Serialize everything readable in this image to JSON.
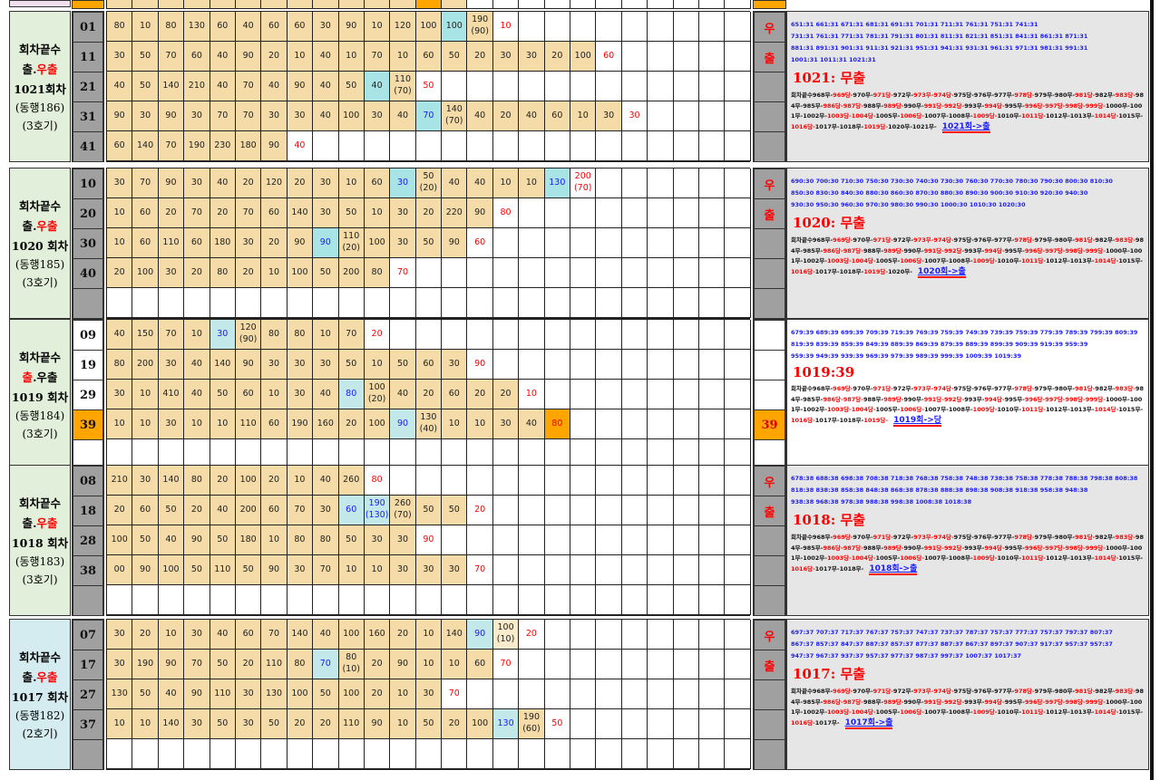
{
  "colors": {
    "tan": "#f5dba8",
    "cyan": "#a8e4e6",
    "orange": "#ffa500",
    "gray": "#a0a0a0",
    "label_green": "#e2efda",
    "label_blue": "#d4ebf0",
    "red": "#ff0000",
    "blue": "#1a1aff"
  },
  "history_sequence": {
    "prefix": "회차끝수",
    "items": [
      "968무",
      "969당",
      "970무",
      "971당",
      "972무",
      "973무",
      "974당",
      "975당",
      "976무",
      "977무",
      "978당",
      "979무",
      "980무",
      "981당",
      "982무",
      "983당",
      "984무",
      "985무",
      "986당",
      "987당",
      "988무",
      "989당",
      "990무",
      "991당",
      "992당",
      "993무",
      "994당",
      "995무",
      "996당",
      "997당",
      "998당",
      "999당",
      "1000무",
      "1001무",
      "1002무",
      "1003당",
      "1004당",
      "1005무",
      "1006당",
      "1007무",
      "1008무",
      "1009당",
      "1010무",
      "1011당",
      "1012무",
      "1013무",
      "1014당",
      "1015무",
      "1016당",
      "1017무",
      "1018무",
      "1019당",
      "1020무",
      "1021무"
    ],
    "red_items": [
      "969당",
      "971당",
      "973무",
      "974당",
      "978당",
      "981당",
      "983당",
      "986당",
      "987당",
      "989당",
      "991당",
      "992당",
      "994당",
      "996당",
      "997당",
      "998당",
      "999당",
      "1003당",
      "1004당",
      "1006당",
      "1009당",
      "1011당",
      "1014당",
      "1016당",
      "1019당"
    ]
  },
  "blocks": [
    {
      "label": {
        "line1": "회차끝수",
        "line2_a": "출",
        "line2_sep": ".",
        "line2_b": "우출",
        "red_part": "b",
        "round": "1021회차",
        "companion": "(동행186)",
        "machine": "(3호기)"
      },
      "label_bg": "green",
      "marker": [
        "우",
        "출",
        "",
        "",
        ""
      ],
      "marker_style": "gray",
      "panel_style": "gray",
      "blue_lines": [
        "651:31 661:31 671:31 681:31 691:31 701:31 711:31 761:31 751:31 741:31",
        "731:31 761:31 771:31 781:31 791:31 801:31 811:31 821:31 851:31 841:31 861:31 871:31",
        "881:31 891:31 901:31 911:31 921:31 951:31 941:31 931:31 961:31 971:31 981:31 991:31",
        "1001:31 1011:31 1021:31"
      ],
      "heading": "1021: 무출",
      "link": "1021회->출",
      "rows": [
        {
          "no": "01",
          "cells": [
            "80",
            "10",
            "80",
            "130",
            "60",
            "40",
            "60",
            "60",
            "30",
            "90",
            "10",
            "120",
            "100",
            {
              "v": "100",
              "bg": "cyan"
            },
            {
              "v": "190",
              "sub": "(90)"
            },
            {
              "v": "10",
              "bg": "white",
              "fg": "red"
            }
          ]
        },
        {
          "no": "11",
          "cells": [
            "30",
            "50",
            "70",
            "60",
            "40",
            "90",
            "20",
            "10",
            "40",
            "10",
            "70",
            "10",
            "60",
            "50",
            "20",
            "30",
            "30",
            "20",
            "100",
            {
              "v": "60",
              "bg": "white",
              "fg": "red"
            }
          ]
        },
        {
          "no": "21",
          "cells": [
            "40",
            "50",
            "140",
            "210",
            "40",
            "70",
            "40",
            "90",
            "40",
            "50",
            {
              "v": "40",
              "bg": "cyan"
            },
            {
              "v": "110",
              "sub": "(70)"
            },
            {
              "v": "50",
              "bg": "white",
              "fg": "red"
            }
          ]
        },
        {
          "no": "31",
          "cells": [
            "90",
            "30",
            "90",
            "30",
            "70",
            "70",
            "30",
            "30",
            "40",
            "100",
            "30",
            "40",
            {
              "v": "70",
              "bg": "cyan",
              "fg": "blue"
            },
            {
              "v": "140",
              "sub": "(70)"
            },
            "40",
            "20",
            "40",
            "60",
            "10",
            "30",
            {
              "v": "30",
              "bg": "white",
              "fg": "red"
            }
          ]
        },
        {
          "no": "41",
          "cells": [
            "60",
            "140",
            "70",
            "190",
            "230",
            "180",
            "90",
            {
              "v": "40",
              "bg": "white",
              "fg": "red"
            }
          ]
        }
      ]
    },
    {
      "label": {
        "line1": "회차끝수",
        "line2_a": "출",
        "line2_sep": ".",
        "line2_b": "우출",
        "red_part": "b",
        "round": "1020 회차",
        "companion": "(동행185)",
        "machine": "(3호기)"
      },
      "label_bg": "green",
      "marker": [
        "우",
        "출",
        "",
        "",
        ""
      ],
      "marker_style": "gray",
      "panel_style": "gray",
      "blue_lines": [
        "690:30 700:30 710:30 750:30 730:30 740:30 730:30 760:30 770:30 780:30 790:30 800:30 810:30",
        "850:30 830:30 840:30 880:30 860:30 870:30 880:30 890:30 900:30 910:30 920:30 940:30",
        "930:30 950:30 960:30 970:30 980:30 990:30 1000:30 1010:30 1020:30"
      ],
      "heading": "1020: 무출",
      "link": "1020회->출",
      "rows": [
        {
          "no": "10",
          "cells": [
            "30",
            "70",
            "90",
            "30",
            "40",
            "20",
            "120",
            "20",
            "30",
            "10",
            "60",
            {
              "v": "30",
              "bg": "cyan",
              "fg": "blue"
            },
            {
              "v": "50",
              "sub": "(20)"
            },
            "40",
            "40",
            "10",
            "10",
            {
              "v": "130",
              "bg": "cyan",
              "fg": "blue"
            },
            {
              "v": "200",
              "sub": "(70)",
              "bg": "white",
              "fg": "red"
            }
          ]
        },
        {
          "no": "20",
          "cells": [
            "10",
            "60",
            "20",
            "70",
            "20",
            "70",
            "60",
            "140",
            "30",
            "50",
            "10",
            "30",
            "20",
            "220",
            "90",
            {
              "v": "80",
              "bg": "white",
              "fg": "red"
            }
          ]
        },
        {
          "no": "30",
          "cells": [
            "10",
            "60",
            "110",
            "60",
            "180",
            "30",
            "20",
            "90",
            {
              "v": "90",
              "bg": "cyan",
              "fg": "blue"
            },
            {
              "v": "110",
              "sub": "(20)"
            },
            "100",
            "30",
            "50",
            "90",
            {
              "v": "60",
              "bg": "white",
              "fg": "red"
            }
          ]
        },
        {
          "no": "40",
          "cells": [
            "20",
            "100",
            "30",
            "20",
            "80",
            "20",
            "10",
            "100",
            "50",
            "200",
            "80",
            {
              "v": "70",
              "bg": "white",
              "fg": "red"
            }
          ]
        },
        {
          "no": "",
          "cells": []
        }
      ]
    },
    {
      "label": {
        "line1": "회차끝수",
        "line2_a": "출",
        "line2_sep": ".",
        "line2_b": "우출",
        "red_part": "a",
        "round": "1019 회차",
        "companion": "(동행184)",
        "machine": "(3호기)"
      },
      "label_bg": "green",
      "num_style": "white",
      "marker": [
        "",
        "",
        "",
        "39",
        ""
      ],
      "marker_style": "white",
      "panel_style": "white",
      "blue_lines": [
        "679:39 689:39 699:39 709:39 719:39 769:39 759:39 749:39 739:39 759:39 779:39 789:39 799:39 809:39",
        "819:39 839:39 859:39 849:39 889:39 869:39 879:39 889:39 899:39 909:39 919:39 959:39",
        "959:39 949:39 939:39 969:39 979:39 989:39 999:39 1009:39 1019:39"
      ],
      "heading": "1019:39",
      "link": "1019회->당",
      "rows": [
        {
          "no": "09",
          "cells": [
            "40",
            "150",
            "70",
            "10",
            {
              "v": "30",
              "bg": "lcyan",
              "fg": "blue"
            },
            {
              "v": "120",
              "sub": "(90)"
            },
            "80",
            "80",
            "10",
            "70",
            {
              "v": "20",
              "bg": "white",
              "fg": "red"
            }
          ]
        },
        {
          "no": "19",
          "cells": [
            "80",
            "200",
            "30",
            "40",
            "140",
            "90",
            "30",
            "30",
            "30",
            "50",
            "10",
            "50",
            "60",
            "30",
            {
              "v": "90",
              "bg": "white",
              "fg": "red"
            }
          ]
        },
        {
          "no": "29",
          "cells": [
            "30",
            "10",
            "410",
            "40",
            "50",
            "60",
            "10",
            "30",
            "40",
            {
              "v": "80",
              "bg": "lcyan",
              "fg": "blue"
            },
            {
              "v": "100",
              "sub": "(20)"
            },
            "40",
            "20",
            "60",
            "20",
            "20",
            {
              "v": "10",
              "bg": "white",
              "fg": "red"
            }
          ]
        },
        {
          "no": "39",
          "no_style": "orange",
          "cells": [
            "10",
            "10",
            "30",
            "10",
            "10",
            "110",
            "60",
            "190",
            "160",
            "20",
            "100",
            {
              "v": "90",
              "bg": "lcyan",
              "fg": "blue"
            },
            {
              "v": "130",
              "sub": "(40)"
            },
            "10",
            "10",
            "30",
            "40",
            {
              "v": "80",
              "bg": "orange",
              "fg": "red"
            }
          ]
        },
        {
          "no": "",
          "cells": []
        }
      ]
    },
    {
      "label": {
        "line1": "회차끝수",
        "line2_a": "출",
        "line2_sep": ".",
        "line2_b": "우출",
        "red_part": "b",
        "round": "1018 회차",
        "companion": "(동행183)",
        "machine": "(3호기)"
      },
      "label_bg": "green",
      "marker": [
        "우",
        "출",
        "",
        "",
        ""
      ],
      "marker_style": "gray",
      "panel_style": "gray",
      "blue_lines": [
        "678:38 688:38 698:38 708:38 718:38 768:38 758:38 748:38 738:38 758:38 778:38 788:38 798:38 808:38",
        "818:38 838:38 858:38 848:38 868:38 878:38 888:38 898:38 908:38 918:38 958:38 948:38",
        "938:38 968:38 978:38 988:38 998:38 1008:38 1018:38"
      ],
      "heading": "1018: 무출",
      "link": "1018회->출",
      "rows": [
        {
          "no": "08",
          "cells": [
            "210",
            "30",
            "140",
            "80",
            "20",
            "100",
            "20",
            "10",
            "40",
            "260",
            {
              "v": "80",
              "bg": "white",
              "fg": "red"
            }
          ]
        },
        {
          "no": "18",
          "cells": [
            "20",
            "60",
            "50",
            "20",
            "40",
            "200",
            "60",
            "70",
            "30",
            {
              "v": "60",
              "bg": "lcyan",
              "fg": "blue"
            },
            {
              "v": "190",
              "sub": "(130)",
              "bg": "lcyan",
              "fg": "blue"
            },
            {
              "v": "260",
              "sub": "(70)"
            },
            "50",
            "50",
            {
              "v": "20",
              "bg": "white",
              "fg": "red"
            }
          ]
        },
        {
          "no": "28",
          "cells": [
            "100",
            "50",
            "40",
            "90",
            "50",
            "180",
            "10",
            "80",
            "80",
            "50",
            "30",
            "30",
            {
              "v": "90",
              "bg": "white",
              "fg": "red"
            }
          ]
        },
        {
          "no": "38",
          "cells": [
            "00",
            "90",
            "100",
            "50",
            "110",
            "50",
            "90",
            "30",
            "70",
            "10",
            "10",
            "30",
            "30",
            "30",
            {
              "v": "70",
              "bg": "white",
              "fg": "red"
            }
          ]
        },
        {
          "no": "",
          "cells": []
        }
      ]
    },
    {
      "label": {
        "line1": "회차끝수",
        "line2_a": "출",
        "line2_sep": ".",
        "line2_b": "우출",
        "red_part": "b",
        "round": "1017 회차",
        "companion": "(동행182)",
        "machine": "(2호기)"
      },
      "label_bg": "blue",
      "marker": [
        "우",
        "출",
        "",
        "",
        ""
      ],
      "marker_style": "gray",
      "panel_style": "gray",
      "blue_lines": [
        "697:37 707:37 717:37 767:37 757:37 747:37 737:37 787:37 757:37 777:37 757:37 797:37 807:37",
        "867:37 857:37 847:37 887:37 857:37 877:37 887:37 867:37 897:37 907:37 917:37 957:37 957:37",
        "947:37 967:37 937:37 957:37 977:37 987:37 997:37 1007:37 1017:37"
      ],
      "heading": "1017: 무출",
      "link": "1017회->출",
      "rows": [
        {
          "no": "07",
          "cells": [
            "30",
            "20",
            "10",
            "30",
            "40",
            "60",
            "70",
            "140",
            "40",
            "100",
            "160",
            "20",
            "10",
            "140",
            {
              "v": "90",
              "bg": "lcyan",
              "fg": "blue"
            },
            {
              "v": "100",
              "sub": "(10)",
              "bg": "ltan"
            },
            {
              "v": "20",
              "bg": "white",
              "fg": "red"
            }
          ]
        },
        {
          "no": "17",
          "cells": [
            "30",
            "190",
            "90",
            "70",
            "50",
            "20",
            "110",
            "80",
            {
              "v": "70",
              "bg": "lcyan",
              "fg": "blue"
            },
            {
              "v": "80",
              "sub": "(10)"
            },
            "20",
            "90",
            "10",
            "10",
            "60",
            {
              "v": "70",
              "bg": "white",
              "fg": "red"
            }
          ]
        },
        {
          "no": "27",
          "cells": [
            "130",
            "50",
            "40",
            "90",
            "110",
            "30",
            "130",
            "100",
            "50",
            "100",
            "20",
            "10",
            "30",
            {
              "v": "70",
              "bg": "white",
              "fg": "red"
            }
          ]
        },
        {
          "no": "37",
          "cells": [
            "10",
            "10",
            "140",
            "30",
            "50",
            "30",
            "50",
            "20",
            "20",
            "110",
            "90",
            "10",
            "50",
            "20",
            "100",
            {
              "v": "130",
              "bg": "lcyan",
              "fg": "blue"
            },
            {
              "v": "190",
              "sub": "(60)"
            },
            {
              "v": "50",
              "bg": "white",
              "fg": "red"
            }
          ]
        },
        {
          "no": "",
          "cells": []
        }
      ]
    }
  ]
}
